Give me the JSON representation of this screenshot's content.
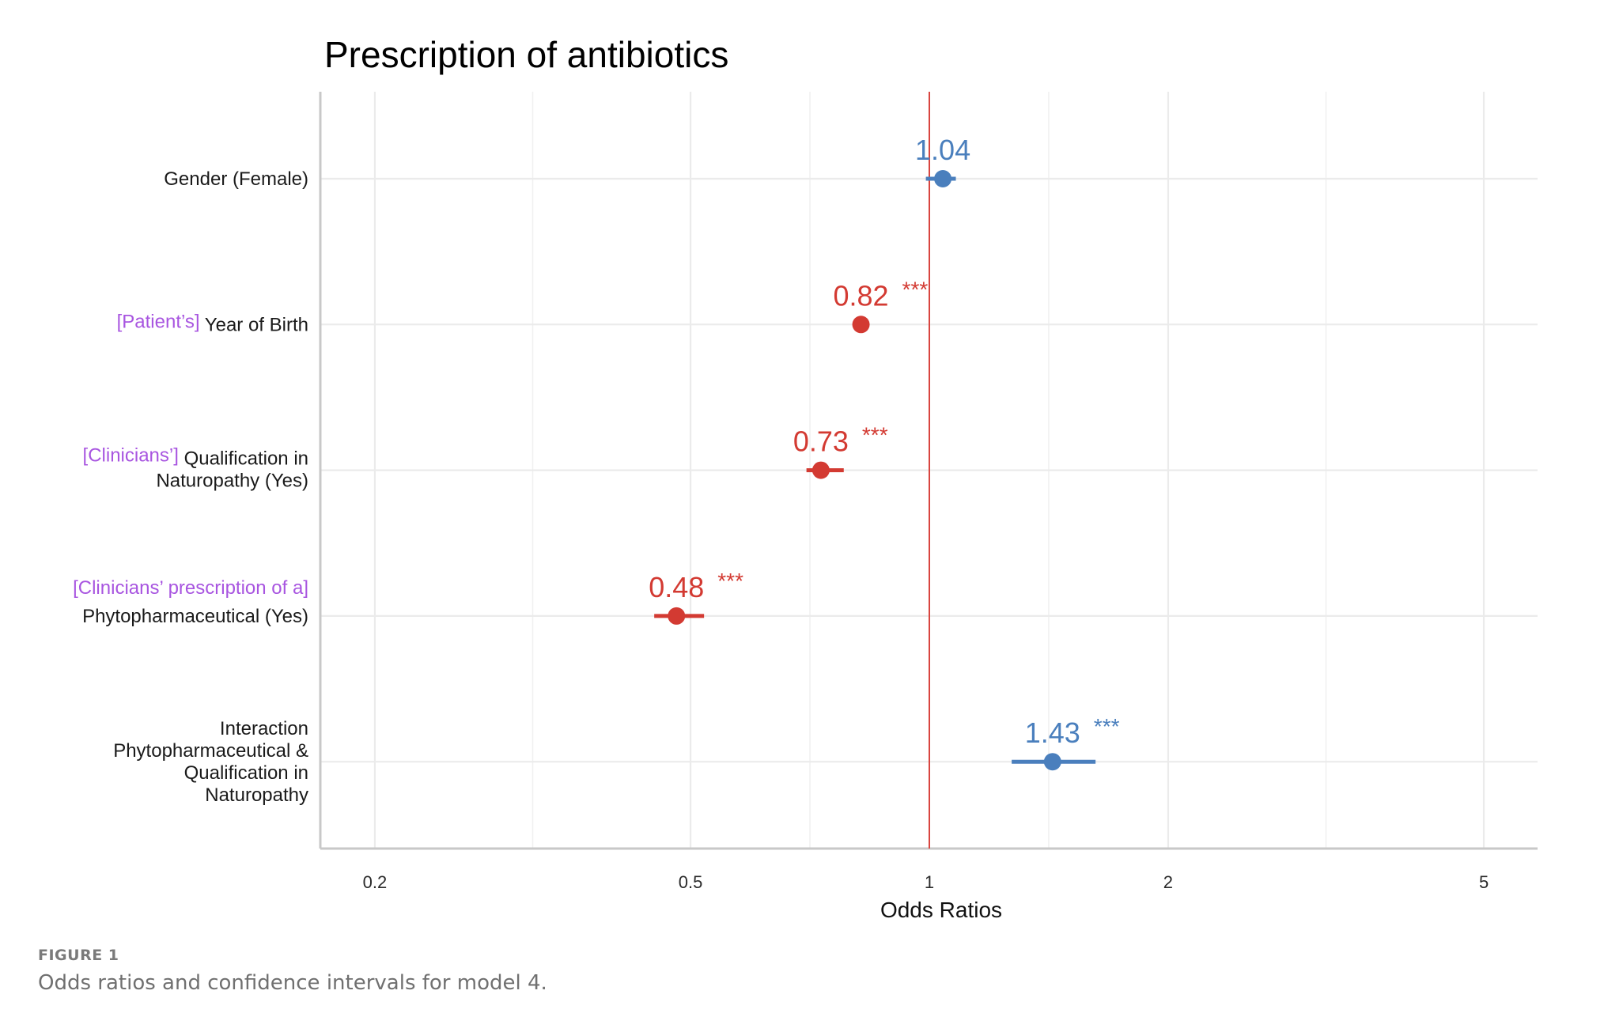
{
  "chart_data": {
    "type": "forest",
    "title": "Prescription of antibiotics",
    "xlabel": "Odds Ratios",
    "ylabel": "",
    "xscale": "log",
    "xlim": [
      0.17,
      6.0
    ],
    "xticks": [
      0.2,
      0.5,
      1,
      2,
      5
    ],
    "xtick_labels": [
      "0.2",
      "0.5",
      "1",
      "2",
      "5"
    ],
    "reference_line": 1,
    "grid": true,
    "colors": {
      "positive": "#4a7fbd",
      "negative": "#d33a32",
      "reference": "#d9453f",
      "prefix": "#a855e0"
    },
    "rows": [
      {
        "prefix": "",
        "label": [
          "Gender (Female)"
        ],
        "or": 1.04,
        "ci": [
          0.99,
          1.08
        ],
        "or_label": "1.04",
        "stars": "",
        "direction": "positive"
      },
      {
        "prefix": "[Patient’s]",
        "label": [
          "Year of Birth"
        ],
        "or": 0.82,
        "ci": [
          0.82,
          0.82
        ],
        "or_label": "0.82",
        "stars": "***",
        "direction": "negative"
      },
      {
        "prefix": "[Clinicians’]",
        "label": [
          "Qualification in",
          "Naturopathy (Yes)"
        ],
        "or": 0.73,
        "ci": [
          0.7,
          0.78
        ],
        "or_label": "0.73",
        "stars": "***",
        "direction": "negative"
      },
      {
        "prefix": "[Clinicians’ prescription of a]",
        "label": [
          "Phytopharmaceutical (Yes)"
        ],
        "or": 0.48,
        "ci": [
          0.45,
          0.52
        ],
        "or_label": "0.48",
        "stars": "***",
        "direction": "negative"
      },
      {
        "prefix": "",
        "label": [
          "Interaction",
          "Phytopharmaceutical &",
          "Qualification in",
          "Naturopathy"
        ],
        "or": 1.43,
        "ci": [
          1.27,
          1.62
        ],
        "or_label": "1.43",
        "stars": "***",
        "direction": "positive"
      }
    ]
  },
  "caption": {
    "figure_label": "FIGURE 1",
    "text": "Odds ratios and confidence intervals for model 4."
  }
}
